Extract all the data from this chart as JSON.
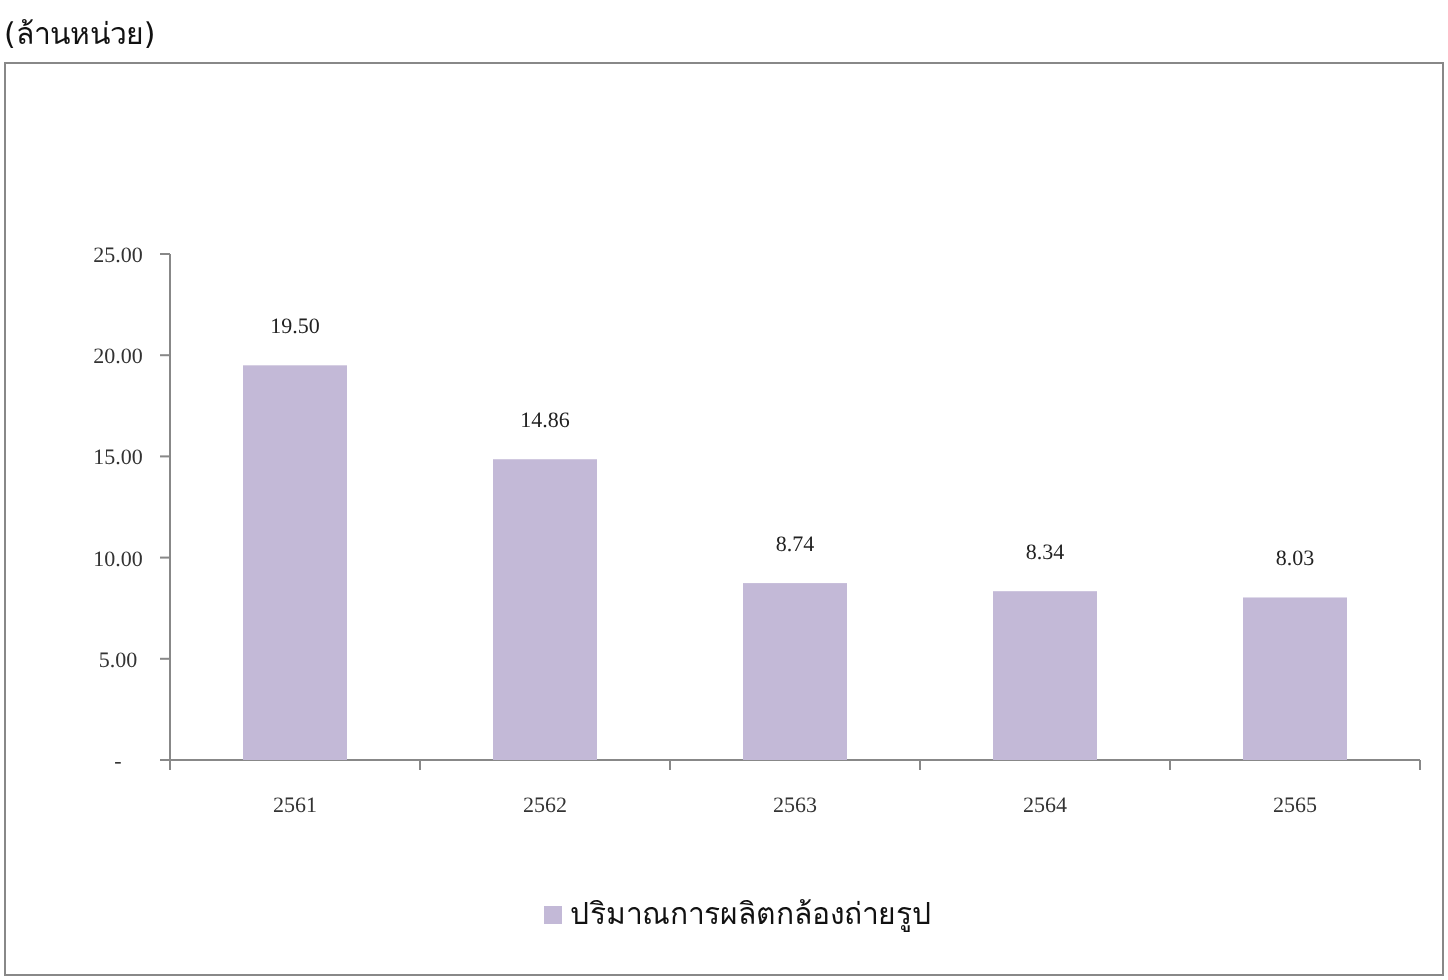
{
  "chart_data": {
    "type": "bar",
    "annotations": [
      "(ล้านหน่วย)"
    ],
    "categories": [
      "2561",
      "2562",
      "2563",
      "2564",
      "2565"
    ],
    "series": [
      {
        "name": "ปริมาณการผลิตกล้องถ่ายรูป",
        "color": "#c3b9d7",
        "values": [
          19.5,
          14.86,
          8.74,
          8.34,
          8.03
        ],
        "value_labels": [
          "19.50",
          "14.86",
          "8.74",
          "8.34",
          "8.03"
        ]
      }
    ],
    "ylim": [
      0,
      25
    ],
    "yticks": [
      {
        "value": 0,
        "label": "-"
      },
      {
        "value": 5,
        "label": "5.00"
      },
      {
        "value": 10,
        "label": "10.00"
      },
      {
        "value": 15,
        "label": "15.00"
      },
      {
        "value": 20,
        "label": "20.00"
      },
      {
        "value": 25,
        "label": "25.00"
      }
    ],
    "legend": "bottom",
    "grid": false
  }
}
